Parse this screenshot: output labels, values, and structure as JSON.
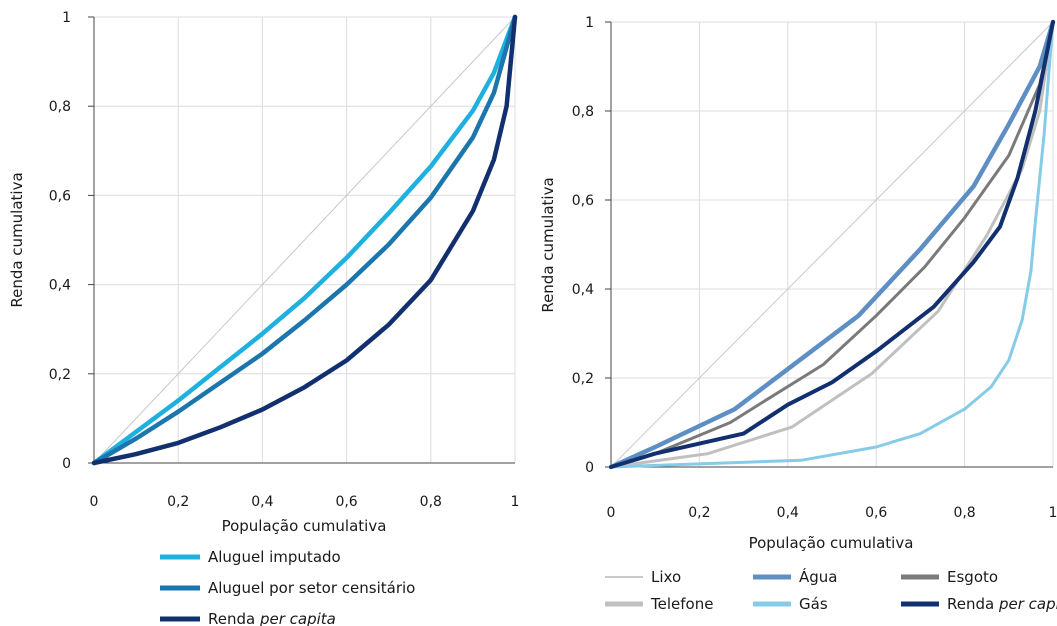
{
  "chart_data": [
    {
      "type": "line",
      "xlabel": "População cumulativa",
      "ylabel": "Renda cumulativa",
      "xlim": [
        0,
        1
      ],
      "ylim": [
        0,
        1
      ],
      "grid": true,
      "legend_position": "bottom",
      "x_ticks": [
        "0",
        "0,2",
        "0,4",
        "0,6",
        "0,8",
        "1"
      ],
      "y_ticks": [
        "0",
        "0,2",
        "0,4",
        "0,6",
        "0,8",
        "1"
      ],
      "equality_line": {
        "x": [
          0,
          1
        ],
        "y": [
          0,
          1
        ],
        "color": "#c8c8c8"
      },
      "series": [
        {
          "name": "Aluguel imputado",
          "color": "#1eb1e0",
          "x": [
            0,
            0.1,
            0.2,
            0.3,
            0.4,
            0.5,
            0.6,
            0.7,
            0.8,
            0.9,
            0.95,
            1
          ],
          "y": [
            0,
            0.07,
            0.14,
            0.215,
            0.29,
            0.37,
            0.46,
            0.56,
            0.665,
            0.79,
            0.875,
            1
          ]
        },
        {
          "name": "Aluguel por setor censitário",
          "color": "#1b76ad",
          "x": [
            0,
            0.1,
            0.2,
            0.3,
            0.4,
            0.5,
            0.6,
            0.7,
            0.8,
            0.9,
            0.95,
            1
          ],
          "y": [
            0,
            0.055,
            0.115,
            0.18,
            0.245,
            0.32,
            0.4,
            0.49,
            0.595,
            0.73,
            0.83,
            1
          ]
        },
        {
          "name_parts": [
            "Renda ",
            "per capita"
          ],
          "color": "#12306f",
          "x": [
            0,
            0.1,
            0.2,
            0.3,
            0.4,
            0.5,
            0.6,
            0.7,
            0.8,
            0.9,
            0.95,
            0.98,
            1
          ],
          "y": [
            0,
            0.02,
            0.045,
            0.08,
            0.12,
            0.17,
            0.23,
            0.31,
            0.41,
            0.565,
            0.68,
            0.8,
            1
          ]
        }
      ]
    },
    {
      "type": "line",
      "xlabel": "População cumulativa",
      "ylabel": "Renda cumulativa",
      "xlim": [
        0,
        1
      ],
      "ylim": [
        0,
        1
      ],
      "grid": true,
      "legend_position": "bottom",
      "x_ticks": [
        "0",
        "0,2",
        "0,4",
        "0,6",
        "0,8",
        "1"
      ],
      "y_ticks": [
        "0",
        "0,2",
        "0,4",
        "0,6",
        "0,8",
        "1"
      ],
      "series": [
        {
          "name": "Lixo",
          "color": "#c9c9c9",
          "width": 1,
          "x": [
            0,
            1
          ],
          "y": [
            0,
            1
          ]
        },
        {
          "name": "Água",
          "color": "#5d8fc4",
          "width": 4.5,
          "x": [
            0,
            0.1,
            0.28,
            0.4,
            0.56,
            0.7,
            0.82,
            0.9,
            0.97,
            1
          ],
          "y": [
            0,
            0.045,
            0.13,
            0.22,
            0.34,
            0.49,
            0.63,
            0.77,
            0.9,
            1
          ]
        },
        {
          "name": "Esgoto",
          "color": "#7a7a7a",
          "width": 3,
          "x": [
            0,
            0.1,
            0.27,
            0.35,
            0.48,
            0.6,
            0.71,
            0.8,
            0.9,
            0.97,
            1
          ],
          "y": [
            0,
            0.03,
            0.1,
            0.15,
            0.23,
            0.34,
            0.45,
            0.56,
            0.7,
            0.86,
            1
          ]
        },
        {
          "name": "Telefone",
          "color": "#c0c0c0",
          "width": 3,
          "x": [
            0,
            0.22,
            0.41,
            0.59,
            0.74,
            0.85,
            0.93,
            0.97,
            1
          ],
          "y": [
            0,
            0.03,
            0.09,
            0.21,
            0.35,
            0.52,
            0.67,
            0.8,
            1
          ]
        },
        {
          "name": "Gás",
          "color": "#86cbe7",
          "width": 3,
          "x": [
            0,
            0.43,
            0.6,
            0.7,
            0.8,
            0.86,
            0.9,
            0.93,
            0.95,
            0.96,
            0.98,
            0.99,
            1
          ],
          "y": [
            0,
            0.015,
            0.045,
            0.075,
            0.13,
            0.18,
            0.24,
            0.33,
            0.44,
            0.55,
            0.75,
            0.88,
            1
          ]
        },
        {
          "name_parts": [
            "Renda ",
            "per capita"
          ],
          "color": "#12306f",
          "width": 4,
          "x": [
            0,
            0.1,
            0.3,
            0.4,
            0.5,
            0.6,
            0.73,
            0.82,
            0.88,
            0.92,
            0.96,
            1
          ],
          "y": [
            0,
            0.03,
            0.075,
            0.14,
            0.19,
            0.26,
            0.36,
            0.46,
            0.54,
            0.65,
            0.8,
            1
          ]
        }
      ]
    }
  ]
}
